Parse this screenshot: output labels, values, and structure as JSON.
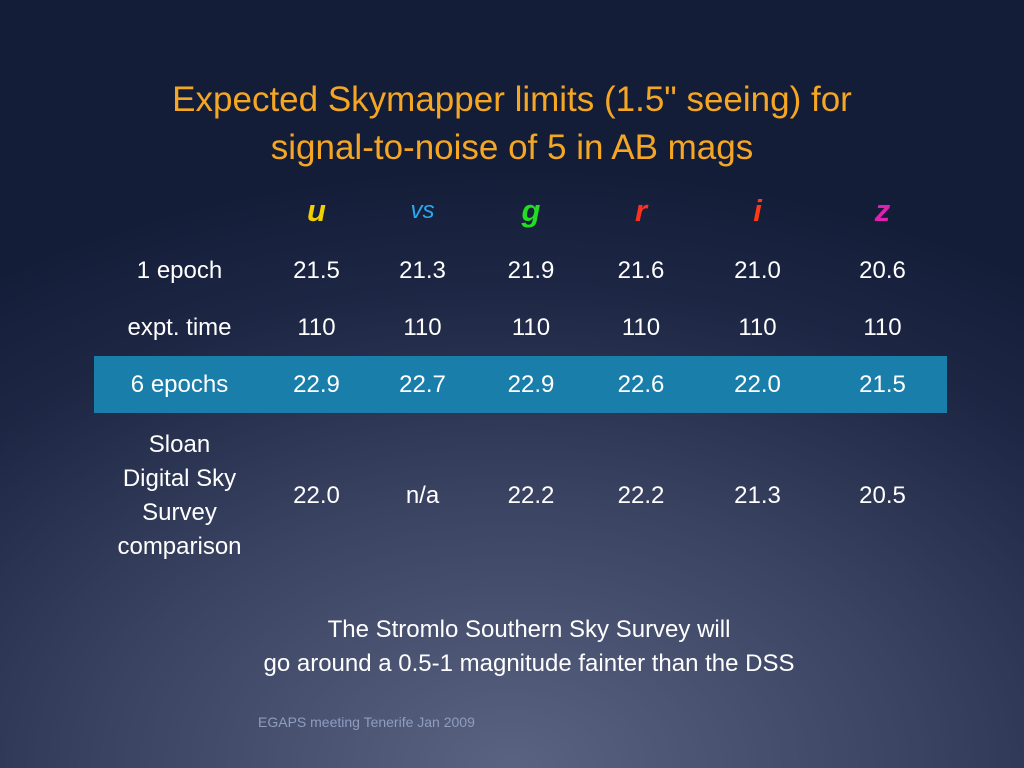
{
  "title": {
    "lines": [
      "Expected Skymapper limits (1.5\" seeing) for",
      "signal-to-noise of 5 in AB mags"
    ],
    "color": "#f5a623"
  },
  "table": {
    "columns": [
      {
        "label": "u",
        "color": "#f0d000",
        "style": "bold"
      },
      {
        "label": "vs",
        "color": "#2aa8f0",
        "style": "normal"
      },
      {
        "label": "g",
        "color": "#22dd22",
        "style": "bold"
      },
      {
        "label": "r",
        "color": "#ff3020",
        "style": "bold"
      },
      {
        "label": "i",
        "color": "#ff3a10",
        "style": "bold"
      },
      {
        "label": "z",
        "color": "#e020b0",
        "style": "bold"
      }
    ],
    "rows": [
      {
        "label": [
          "1 epoch"
        ],
        "values": [
          "21.5",
          "21.3",
          "21.9",
          "21.6",
          "21.0",
          "20.6"
        ]
      },
      {
        "label": [
          "expt. time"
        ],
        "values": [
          "110",
          "110",
          "110",
          "110",
          "110",
          "110"
        ]
      },
      {
        "label": [
          "6 epochs"
        ],
        "values": [
          "22.9",
          "22.7",
          "22.9",
          "22.6",
          "22.0",
          "21.5"
        ],
        "highlight": true
      },
      {
        "label": [
          "Sloan",
          "Digital Sky",
          "Survey",
          "comparison"
        ],
        "values": [
          "22.0",
          "n/a",
          "22.2",
          "22.2",
          "21.3",
          "20.5"
        ]
      }
    ],
    "highlight_color": "#1a7eab"
  },
  "note": {
    "lines": [
      "The Stromlo Southern Sky Survey will",
      "go around a 0.5-1 magnitude fainter than the DSS"
    ]
  },
  "footer": "EGAPS meeting Tenerife Jan 2009"
}
